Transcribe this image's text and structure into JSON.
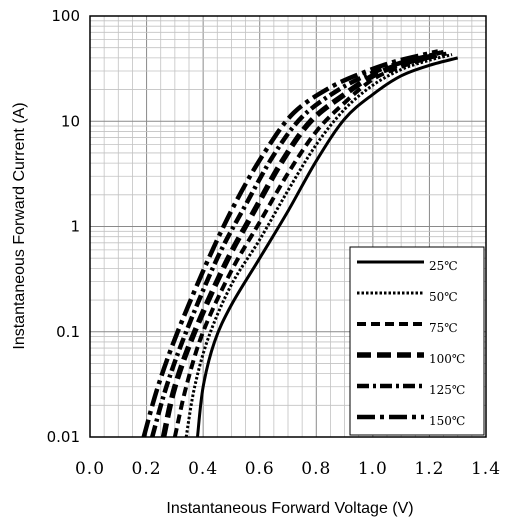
{
  "chart_data": {
    "type": "line",
    "title": "",
    "xlabel": "Instantaneous Forward Voltage (V)",
    "ylabel": "Instantaneous Forward Current (A)",
    "xlim": [
      0.0,
      1.4
    ],
    "ylim": [
      0.01,
      100
    ],
    "yscale": "log",
    "grid": true,
    "legend_position": "bottom-right",
    "x_ticks": [
      "0.0",
      "0.2",
      "0.4",
      "0.6",
      "0.8",
      "1.0",
      "1.2",
      "1.4"
    ],
    "y_ticks": [
      "0.01",
      "0.1",
      "1",
      "10",
      "100"
    ],
    "series": [
      {
        "name": "25℃",
        "style": "solid",
        "points": [
          [
            0.38,
            0.01
          ],
          [
            0.4,
            0.03
          ],
          [
            0.44,
            0.08
          ],
          [
            0.5,
            0.18
          ],
          [
            0.6,
            0.5
          ],
          [
            0.7,
            1.4
          ],
          [
            0.8,
            4.2
          ],
          [
            0.9,
            10.5
          ],
          [
            1.0,
            18
          ],
          [
            1.1,
            27
          ],
          [
            1.2,
            34
          ],
          [
            1.3,
            40
          ]
        ]
      },
      {
        "name": "50℃",
        "style": "dotted",
        "points": [
          [
            0.34,
            0.01
          ],
          [
            0.37,
            0.03
          ],
          [
            0.42,
            0.09
          ],
          [
            0.5,
            0.28
          ],
          [
            0.6,
            0.75
          ],
          [
            0.7,
            2.2
          ],
          [
            0.8,
            6.0
          ],
          [
            0.9,
            13
          ],
          [
            1.0,
            22
          ],
          [
            1.1,
            31
          ],
          [
            1.2,
            38
          ],
          [
            1.28,
            43
          ]
        ]
      },
      {
        "name": "75℃",
        "style": "dash",
        "points": [
          [
            0.3,
            0.01
          ],
          [
            0.34,
            0.03
          ],
          [
            0.4,
            0.1
          ],
          [
            0.5,
            0.38
          ],
          [
            0.6,
            1.1
          ],
          [
            0.7,
            3.2
          ],
          [
            0.8,
            8.0
          ],
          [
            0.9,
            15
          ],
          [
            1.0,
            25
          ],
          [
            1.1,
            33
          ],
          [
            1.2,
            40
          ],
          [
            1.26,
            44
          ]
        ]
      },
      {
        "name": "100℃",
        "style": "longdash",
        "points": [
          [
            0.26,
            0.01
          ],
          [
            0.3,
            0.03
          ],
          [
            0.37,
            0.1
          ],
          [
            0.48,
            0.45
          ],
          [
            0.58,
            1.4
          ],
          [
            0.68,
            4.2
          ],
          [
            0.78,
            10
          ],
          [
            0.9,
            18
          ],
          [
            1.0,
            27
          ],
          [
            1.1,
            35
          ],
          [
            1.2,
            41
          ],
          [
            1.25,
            45
          ]
        ]
      },
      {
        "name": "125℃",
        "style": "dashdot",
        "points": [
          [
            0.22,
            0.01
          ],
          [
            0.27,
            0.03
          ],
          [
            0.34,
            0.1
          ],
          [
            0.45,
            0.5
          ],
          [
            0.55,
            1.6
          ],
          [
            0.65,
            4.8
          ],
          [
            0.75,
            11
          ],
          [
            0.88,
            20
          ],
          [
            1.0,
            29
          ],
          [
            1.1,
            36
          ],
          [
            1.2,
            42
          ],
          [
            1.24,
            45
          ]
        ]
      },
      {
        "name": "150℃",
        "style": "longdashdot",
        "points": [
          [
            0.19,
            0.01
          ],
          [
            0.24,
            0.03
          ],
          [
            0.31,
            0.1
          ],
          [
            0.42,
            0.5
          ],
          [
            0.52,
            1.8
          ],
          [
            0.62,
            5.2
          ],
          [
            0.72,
            12
          ],
          [
            0.85,
            21
          ],
          [
            0.98,
            30
          ],
          [
            1.08,
            37
          ],
          [
            1.18,
            43
          ],
          [
            1.23,
            46
          ]
        ]
      }
    ]
  }
}
